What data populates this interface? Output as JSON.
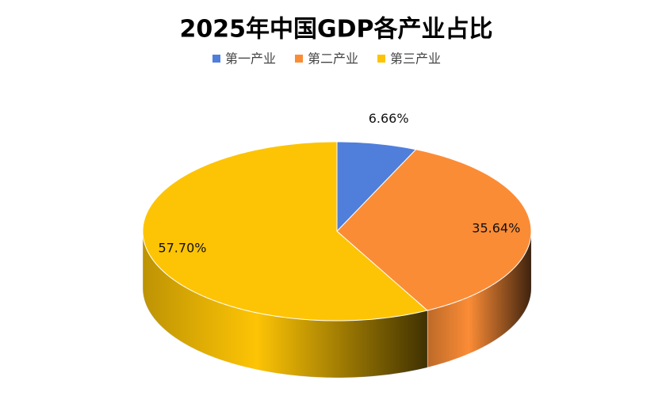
{
  "chart_data": {
    "type": "pie",
    "title": "2025年中国GDP各产业占比",
    "categories": [
      "第一产业",
      "第二产业",
      "第三产业"
    ],
    "values": [
      6.66,
      35.64,
      57.7
    ],
    "value_labels": [
      "6.66%",
      "35.64%",
      "57.70%"
    ],
    "colors": [
      "#4f7fdb",
      "#fb8c36",
      "#fdc405"
    ],
    "legend": "top"
  }
}
